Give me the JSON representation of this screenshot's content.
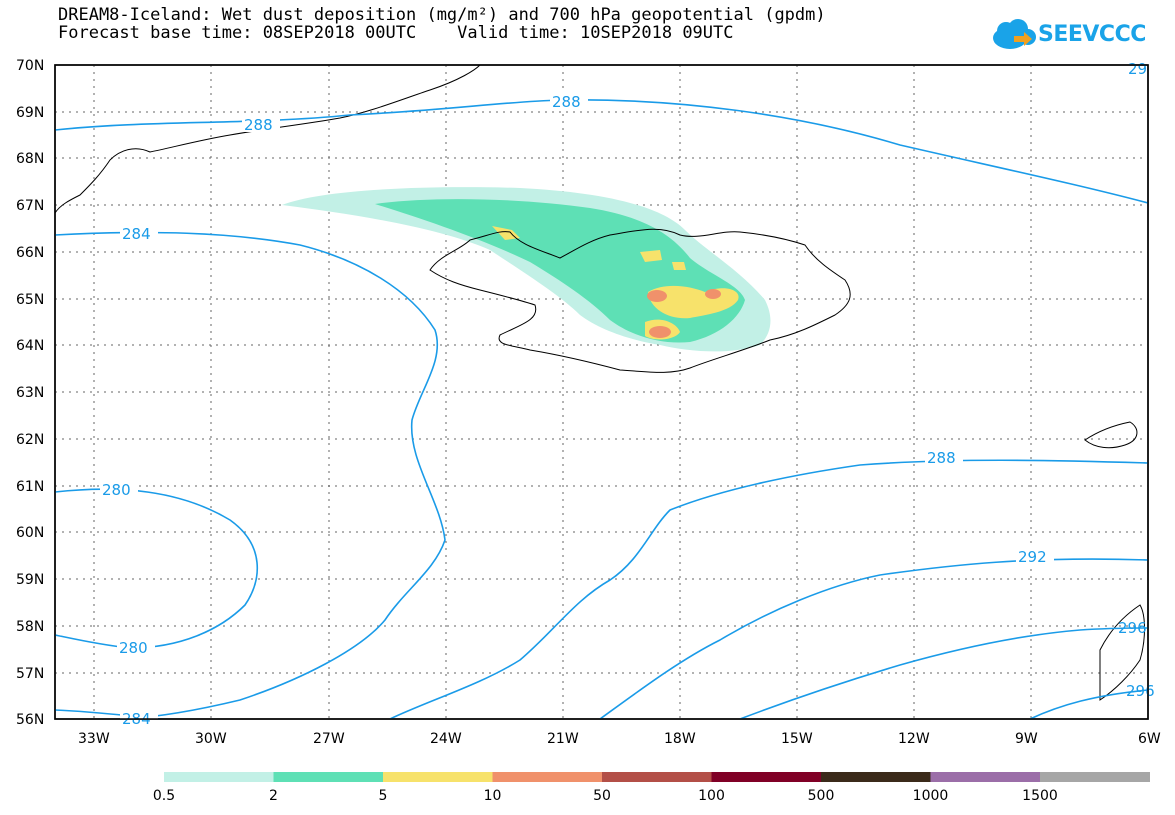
{
  "title": {
    "line1": "DREAM8-Iceland: Wet dust deposition (mg/m²) and 700 hPa geopotential (gpdm)",
    "line2": "Forecast base time: 08SEP2018 00UTC    Valid time: 10SEP2018 09UTC"
  },
  "logo": {
    "text": "SEEVCCC",
    "icon": "cloud-icon",
    "color": "#1aa3e8"
  },
  "map": {
    "lon_range": [
      -34,
      -6
    ],
    "lat_range": [
      56,
      70
    ],
    "lat_labels": [
      "70N",
      "69N",
      "68N",
      "67N",
      "66N",
      "65N",
      "64N",
      "63N",
      "62N",
      "61N",
      "60N",
      "59N",
      "58N",
      "57N",
      "56N"
    ],
    "lon_labels": [
      "33W",
      "30W",
      "27W",
      "24W",
      "21W",
      "18W",
      "15W",
      "12W",
      "9W",
      "6W"
    ],
    "contour_color": "#1a9be8",
    "contour_labels": [
      "288",
      "288",
      "284",
      "288",
      "280",
      "292",
      "280",
      "296",
      "284",
      "296",
      "29"
    ]
  },
  "colorbar": {
    "labels": [
      "0.5",
      "2",
      "5",
      "10",
      "50",
      "100",
      "500",
      "1000",
      "1500"
    ],
    "colors": [
      "#c2f0e6",
      "#5ee0b5",
      "#f7e26b",
      "#f0916b",
      "#b34f47",
      "#800026",
      "#3b2a1a",
      "#9b6ea8",
      "#a6a6a6"
    ]
  }
}
